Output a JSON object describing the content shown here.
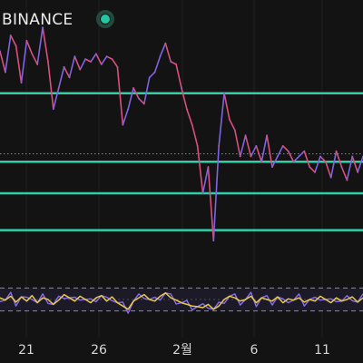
{
  "header": {
    "exchange_label": "BINANCE",
    "status_color": "#26c6a4"
  },
  "colors": {
    "background": "#131313",
    "level_line": "#2fd0a8",
    "price_up": "#7e64e6",
    "price_down": "#d9507c",
    "reference_line": "#d86a4a",
    "oscillator_main": "#e9c94a",
    "oscillator_alt": "#8a6cf0",
    "oscillator_bands": "#8a8a9a"
  },
  "chart_data": {
    "type": "line",
    "title": "",
    "xlabel": "",
    "ylabel": "",
    "x_ticks": [
      "21",
      "26",
      "2월",
      "6",
      "11"
    ],
    "price": {
      "ylim": [
        0,
        100
      ],
      "values": [
        84,
        76,
        90,
        86,
        72,
        88,
        83,
        79,
        93,
        80,
        62,
        70,
        78,
        74,
        82,
        77,
        81,
        80,
        83,
        79,
        82,
        81,
        78,
        56,
        62,
        70,
        66,
        64,
        74,
        76,
        82,
        87,
        80,
        79,
        70,
        62,
        56,
        48,
        30,
        40,
        12,
        48,
        68,
        58,
        54,
        44,
        52,
        44,
        48,
        42,
        52,
        40,
        44,
        48,
        46,
        42,
        44,
        46,
        40,
        38,
        44,
        42,
        36,
        46,
        40,
        35,
        44,
        38,
        44
      ],
      "levels": [
        68,
        42,
        30,
        16
      ],
      "reference": 45
    },
    "oscillator": {
      "ylim": [
        0,
        100
      ],
      "bands": [
        85,
        15
      ],
      "mid": 50,
      "values": [
        55,
        48,
        60,
        42,
        58,
        45,
        62,
        40,
        55,
        50,
        35,
        48,
        65,
        55,
        45,
        60,
        50,
        40,
        55,
        62,
        45,
        58,
        40,
        30,
        20,
        45,
        55,
        65,
        50,
        45,
        60,
        70,
        55,
        48,
        40,
        35,
        30,
        28,
        25,
        35,
        20,
        30,
        50,
        60,
        55,
        45,
        50,
        60,
        40,
        55,
        50,
        45,
        58,
        40,
        52,
        48,
        55,
        42,
        50,
        45,
        60,
        50,
        40,
        55,
        45,
        50,
        58,
        42,
        55
      ]
    }
  }
}
